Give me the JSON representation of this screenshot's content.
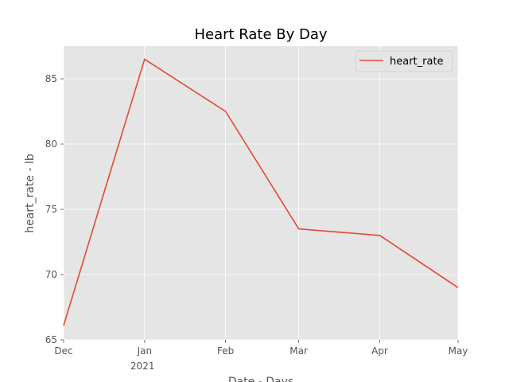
{
  "chart_data": {
    "type": "line",
    "title": "Heart Rate By Day",
    "xlabel": "Date - Days",
    "ylabel": "heart_rate - lb",
    "x": [
      "2020-12-01",
      "2021-01-01",
      "2021-02-01",
      "2021-03-01",
      "2021-04-01",
      "2021-05-01"
    ],
    "x_tick_labels": [
      "Dec",
      "Jan",
      "Feb",
      "Mar",
      "Apr",
      "May"
    ],
    "x_year_label": "2021",
    "series": [
      {
        "name": "heart_rate",
        "color": "#E24A33",
        "values": [
          66.1,
          86.5,
          82.5,
          73.5,
          73.0,
          69.0
        ]
      }
    ],
    "ylim": [
      65,
      87.5
    ],
    "y_ticks": [
      65,
      70,
      75,
      80,
      85
    ],
    "grid": true,
    "legend": "top-right",
    "background_color": "#E5E5E5",
    "grid_color": "#FFFFFF"
  }
}
